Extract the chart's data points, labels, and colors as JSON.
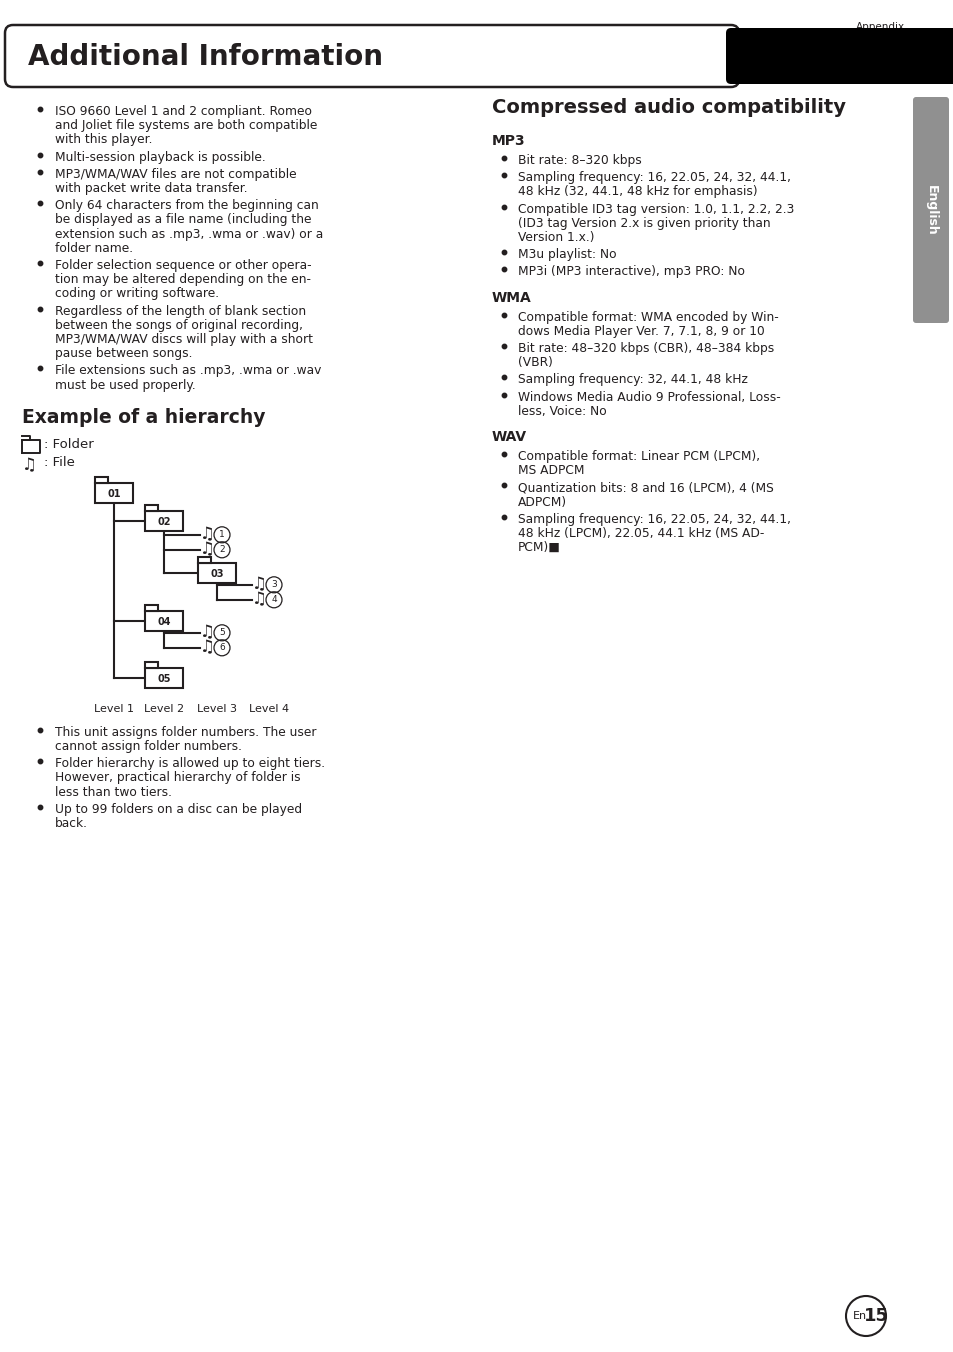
{
  "title": "Additional Information",
  "appendix_label": "Appendix",
  "english_label": "English",
  "page_number": "15",
  "en_label": "En",
  "left_bullets": [
    "ISO 9660 Level 1 and 2 compliant. Romeo\nand Joliet file systems are both compatible\nwith this player.",
    "Multi-session playback is possible.",
    "MP3/WMA/WAV files are not compatible\nwith packet write data transfer.",
    "Only 64 characters from the beginning can\nbe displayed as a file name (including the\nextension such as .mp3, .wma or .wav) or a\nfolder name.",
    "Folder selection sequence or other opera-\ntion may be altered depending on the en-\ncoding or writing software.",
    "Regardless of the length of blank section\nbetween the songs of original recording,\nMP3/WMA/WAV discs will play with a short\npause between songs.",
    "File extensions such as .mp3, .wma or .wav\nmust be used properly."
  ],
  "hierarchy_title": "Example of a hierarchy",
  "folder_label": ": Folder",
  "file_label": ": File",
  "level_labels": [
    "Level 1",
    "Level 2",
    "Level 3",
    "Level 4"
  ],
  "bottom_bullets": [
    "This unit assigns folder numbers. The user\ncannot assign folder numbers.",
    "Folder hierarchy is allowed up to eight tiers.\nHowever, practical hierarchy of folder is\nless than two tiers.",
    "Up to 99 folders on a disc can be played\nback."
  ],
  "right_title": "Compressed audio compatibility",
  "mp3_label": "MP3",
  "mp3_bullets": [
    "Bit rate: 8–320 kbps",
    "Sampling frequency: 16, 22.05, 24, 32, 44.1,\n48 kHz (32, 44.1, 48 kHz for emphasis)",
    "Compatible ID3 tag version: 1.0, 1.1, 2.2, 2.3\n(ID3 tag Version 2.x is given priority than\nVersion 1.x.)",
    "M3u playlist: No",
    "MP3i (MP3 interactive), mp3 PRO: No"
  ],
  "wma_label": "WMA",
  "wma_bullets": [
    "Compatible format: WMA encoded by Win-\ndows Media Player Ver. 7, 7.1, 8, 9 or 10",
    "Bit rate: 48–320 kbps (CBR), 48–384 kbps\n(VBR)",
    "Sampling frequency: 32, 44.1, 48 kHz",
    "Windows Media Audio 9 Professional, Loss-\nless, Voice: No"
  ],
  "wav_label": "WAV",
  "wav_bullets": [
    "Compatible format: Linear PCM (LPCM),\nMS ADPCM",
    "Quantization bits: 8 and 16 (LPCM), 4 (MS\nADPCM)",
    "Sampling frequency: 16, 22.05, 24, 32, 44.1,\n48 kHz (LPCM), 22.05, 44.1 kHz (MS AD-\nPCM)■"
  ],
  "bg_color": "#ffffff",
  "text_color": "#231f20"
}
